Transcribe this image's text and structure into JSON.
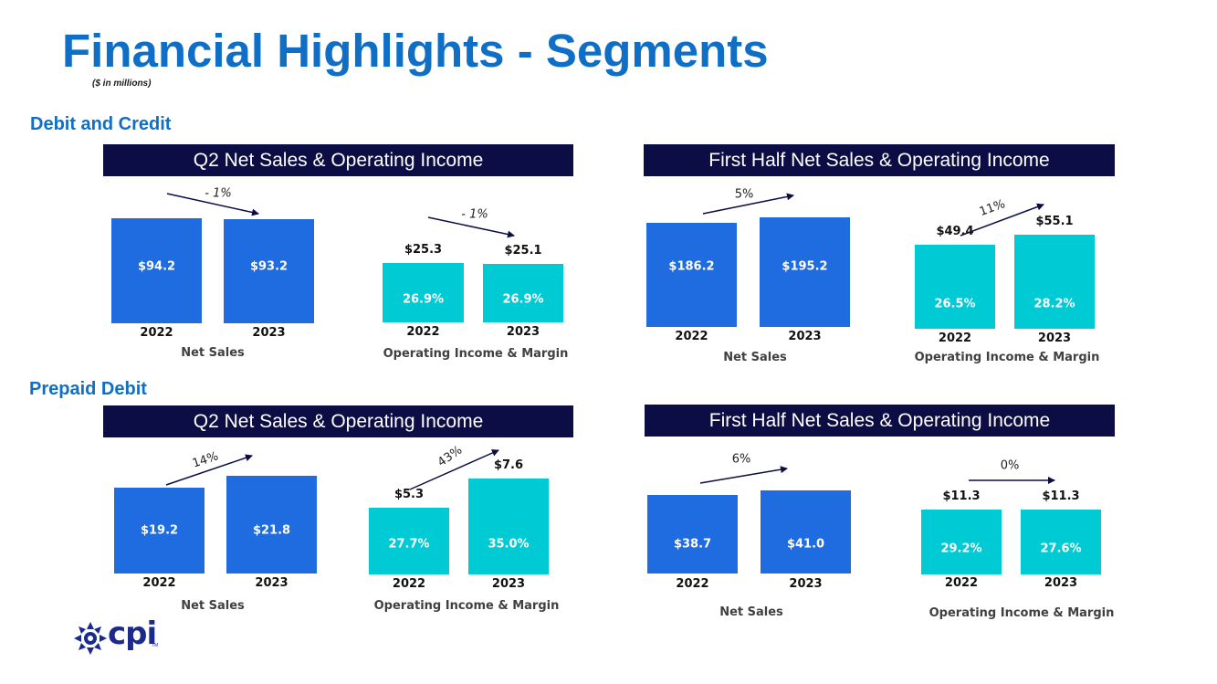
{
  "title": "Financial Highlights - Segments",
  "subtitle": "($ in millions)",
  "sections": {
    "debit_credit": "Debit and Credit",
    "prepaid": "Prepaid Debit"
  },
  "headers": {
    "q2_dc": "Q2 Net Sales & Operating Income",
    "fh_dc": "First Half Net Sales & Operating Income",
    "q2_pd": "Q2 Net Sales & Operating Income",
    "fh_pd": "First Half Net Sales & Operating Income"
  },
  "logo": {
    "text": "cpi",
    "tm": "TM",
    "icon": "cpi-logo-icon"
  },
  "colors": {
    "title": "#0f6fc6",
    "header_bg": "#0d0d45",
    "net_sales_bar": "#1f6be0",
    "op_income_bar": "#00cbd5"
  },
  "chart_data": [
    {
      "id": "dc_q2_ns",
      "type": "bar",
      "segment": "Debit and Credit",
      "period": "Q2",
      "xlabel": "Net Sales",
      "categories": [
        "2022",
        "2023"
      ],
      "values": [
        94.2,
        93.2
      ],
      "bar_labels": [
        "$94.2",
        "$93.2"
      ],
      "change": "- 1%",
      "change_style": "italic",
      "direction": "down"
    },
    {
      "id": "dc_q2_oi",
      "type": "bar",
      "segment": "Debit and Credit",
      "period": "Q2",
      "xlabel": "Operating Income & Margin",
      "categories": [
        "2022",
        "2023"
      ],
      "values": [
        25.3,
        25.1
      ],
      "value_labels": [
        "$25.3",
        "$25.1"
      ],
      "margins": [
        "26.9%",
        "26.9%"
      ],
      "change": "- 1%",
      "change_style": "italic",
      "direction": "down"
    },
    {
      "id": "dc_fh_ns",
      "type": "bar",
      "segment": "Debit and Credit",
      "period": "First Half",
      "xlabel": "Net Sales",
      "categories": [
        "2022",
        "2023"
      ],
      "values": [
        186.2,
        195.2
      ],
      "bar_labels": [
        "$186.2",
        "$195.2"
      ],
      "change": "5%",
      "direction": "up"
    },
    {
      "id": "dc_fh_oi",
      "type": "bar",
      "segment": "Debit and Credit",
      "period": "First Half",
      "xlabel": "Operating Income & Margin",
      "categories": [
        "2022",
        "2023"
      ],
      "values": [
        49.4,
        55.1
      ],
      "value_labels": [
        "$49.4",
        "$55.1"
      ],
      "margins": [
        "26.5%",
        "28.2%"
      ],
      "change": "11%",
      "direction": "up"
    },
    {
      "id": "pd_q2_ns",
      "type": "bar",
      "segment": "Prepaid Debit",
      "period": "Q2",
      "xlabel": "Net Sales",
      "categories": [
        "2022",
        "2023"
      ],
      "values": [
        19.2,
        21.8
      ],
      "bar_labels": [
        "$19.2",
        "$21.8"
      ],
      "change": "14%",
      "direction": "up"
    },
    {
      "id": "pd_q2_oi",
      "type": "bar",
      "segment": "Prepaid Debit",
      "period": "Q2",
      "xlabel": "Operating Income & Margin",
      "categories": [
        "2022",
        "2023"
      ],
      "values": [
        5.3,
        7.6
      ],
      "value_labels": [
        "$5.3",
        "$7.6"
      ],
      "margins": [
        "27.7%",
        "35.0%"
      ],
      "change": "43%",
      "direction": "up"
    },
    {
      "id": "pd_fh_ns",
      "type": "bar",
      "segment": "Prepaid Debit",
      "period": "First Half",
      "xlabel": "Net Sales",
      "categories": [
        "2022",
        "2023"
      ],
      "values": [
        38.7,
        41.0
      ],
      "bar_labels": [
        "$38.7",
        "$41.0"
      ],
      "change": "6%",
      "direction": "up"
    },
    {
      "id": "pd_fh_oi",
      "type": "bar",
      "segment": "Prepaid Debit",
      "period": "First Half",
      "xlabel": "Operating Income & Margin",
      "categories": [
        "2022",
        "2023"
      ],
      "values": [
        11.3,
        11.3
      ],
      "value_labels": [
        "$11.3",
        "$11.3"
      ],
      "margins": [
        "29.2%",
        "27.6%"
      ],
      "change": "0%",
      "direction": "flat"
    }
  ]
}
